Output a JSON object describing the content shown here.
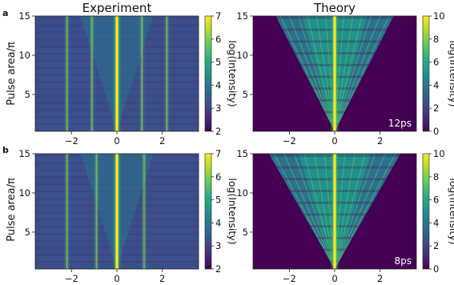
{
  "figure": {
    "col_titles": [
      "Experiment",
      "Theory"
    ],
    "row_letters": [
      "a",
      "b"
    ],
    "ylabel": "Pulse area/π",
    "colorbar_label": "log(Intensity)"
  },
  "chart_data": [
    {
      "type": "heatmap",
      "panel": "a",
      "column": "Experiment",
      "title": "Experiment",
      "ylabel": "Pulse area/π",
      "xlabel": "",
      "xlim": [
        -3.6,
        3.6
      ],
      "ylim": [
        0.3,
        15
      ],
      "xticks": [
        -2,
        0,
        2
      ],
      "yticks": [
        5,
        10,
        15
      ],
      "colorbar": {
        "label": "log(Intensity)",
        "min": 2,
        "max": 7,
        "ticks": [
          2,
          3,
          4,
          5,
          6,
          7
        ]
      },
      "colormap": "viridis",
      "annotation": "",
      "features": {
        "central_line_x": 0,
        "side_lines_x": [
          -2.2,
          -1.1,
          1.1,
          2.2
        ]
      }
    },
    {
      "type": "heatmap",
      "panel": "a",
      "column": "Theory",
      "title": "Theory",
      "ylabel": "",
      "xlabel": "",
      "xlim": [
        -3.6,
        3.6
      ],
      "ylim": [
        0.3,
        15
      ],
      "xticks": [
        -2,
        0,
        2
      ],
      "yticks": [
        5,
        10,
        15
      ],
      "colorbar": {
        "label": "log(Intensity)",
        "min": 0,
        "max": 10,
        "ticks": [
          0,
          2,
          4,
          6,
          8,
          10
        ]
      },
      "colormap": "viridis",
      "annotation": "12ps",
      "features": {
        "central_line_x": 0,
        "fan_width_at_top": 2.6
      }
    },
    {
      "type": "heatmap",
      "panel": "b",
      "column": "Experiment",
      "title": "",
      "ylabel": "Pulse area/π",
      "xlabel": "",
      "xlim": [
        -3.6,
        3.6
      ],
      "ylim": [
        0.3,
        15
      ],
      "xticks": [
        -2,
        0,
        2
      ],
      "yticks": [
        5,
        10,
        15
      ],
      "colorbar": {
        "label": "log(Intensity)",
        "min": 2,
        "max": 7,
        "ticks": [
          2,
          3,
          4,
          5,
          6,
          7
        ]
      },
      "colormap": "viridis",
      "annotation": "",
      "features": {
        "central_line_x": 0,
        "side_lines_x": [
          -2.2,
          -0.9,
          1.2
        ]
      }
    },
    {
      "type": "heatmap",
      "panel": "b",
      "column": "Theory",
      "title": "",
      "ylabel": "",
      "xlabel": "",
      "xlim": [
        -3.6,
        3.6
      ],
      "ylim": [
        0.3,
        15
      ],
      "xticks": [
        -2,
        0,
        2
      ],
      "yticks": [
        5,
        10,
        15
      ],
      "colorbar": {
        "label": "log(Intensity)",
        "min": 0,
        "max": 10,
        "ticks": [
          0,
          2,
          4,
          6,
          8,
          10
        ]
      },
      "colormap": "viridis",
      "annotation": "8ps",
      "features": {
        "central_line_x": 0,
        "fan_width_at_top": 2.9
      }
    }
  ]
}
